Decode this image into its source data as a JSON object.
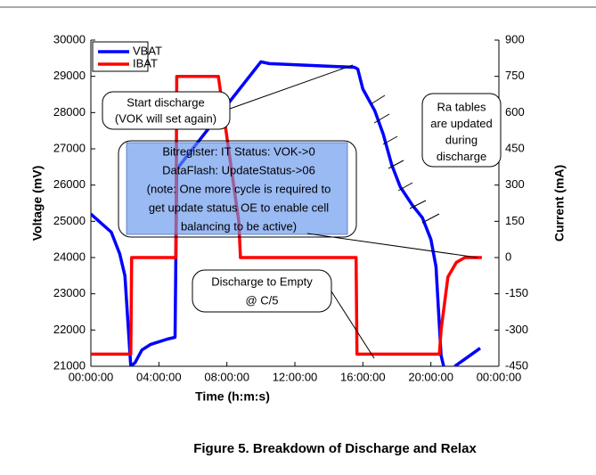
{
  "chart_data": {
    "type": "line",
    "caption": "Figure 5. Breakdown of Discharge and Relax",
    "x_label": "Time (h:m:s)",
    "y_label": "Voltage (mV)",
    "y2_label": "Current (mA)",
    "xlim": [
      0,
      24
    ],
    "xticks": [
      {
        "value": 0,
        "label": "00:00:00"
      },
      {
        "value": 4,
        "label": "04:00:00"
      },
      {
        "value": 8,
        "label": "08:00:00"
      },
      {
        "value": 12,
        "label": "12:00:00"
      },
      {
        "value": 16,
        "label": "16:00:00"
      },
      {
        "value": 20,
        "label": "20:00:00"
      },
      {
        "value": 24,
        "label": "00:00:00"
      }
    ],
    "ylim": [
      21000,
      30000
    ],
    "yticks": [
      21000,
      22000,
      23000,
      24000,
      25000,
      26000,
      27000,
      28000,
      29000,
      30000
    ],
    "y2lim": [
      -450,
      900
    ],
    "y2ticks": [
      -450,
      -300,
      -150,
      0,
      150,
      300,
      450,
      600,
      750,
      900
    ],
    "legend": "top-left",
    "series": [
      {
        "name": "VBAT",
        "color": "#0000ff",
        "x": [
          0,
          1.2,
          1.7,
          2.0,
          2.35,
          2.6,
          3.0,
          3.5,
          4.5,
          4.95,
          5.05,
          10.0,
          10.5,
          15.5,
          15.7,
          16.0,
          16.7,
          17.2,
          17.7,
          18.2,
          18.9,
          19.5,
          20.0,
          20.3,
          20.6,
          20.75,
          null,
          21.4,
          22.0,
          22.9
        ],
        "values": [
          25200,
          24700,
          24100,
          23500,
          21000,
          21100,
          21450,
          21600,
          21750,
          21800,
          26440,
          29400,
          29350,
          29250,
          29200,
          28650,
          28050,
          27400,
          26550,
          25950,
          25450,
          25100,
          24500,
          23750,
          21300,
          21000,
          null,
          21000,
          21200,
          21500
        ]
      },
      {
        "name": "IBAT",
        "color": "#ff0000",
        "axis": "y2",
        "x": [
          0,
          2.35,
          2.4,
          5.0,
          5.05,
          7.5,
          8.7,
          8.8,
          15.6,
          15.65,
          20.5,
          20.6,
          21.0,
          21.5,
          22.0,
          23.0
        ],
        "values": [
          -400,
          -400,
          0,
          0,
          750,
          750,
          150,
          0,
          0,
          -400,
          -400,
          -300,
          -80,
          -20,
          0,
          0
        ]
      }
    ],
    "annotations": [
      {
        "lines": [
          "Start discharge",
          "(VOK will set again)"
        ]
      },
      {
        "lines": [
          "Ra tables",
          "are updated",
          "during",
          "discharge"
        ]
      },
      {
        "lines": [
          "Bitregister: IT Status: VOK->0",
          "DataFlash: UpdateStatus->06",
          "(note: One more cycle is required to",
          "get update status OE to enable cell",
          "balancing to be active)"
        ]
      },
      {
        "lines": [
          "Discharge to Empty",
          "@ C/5"
        ]
      }
    ]
  }
}
